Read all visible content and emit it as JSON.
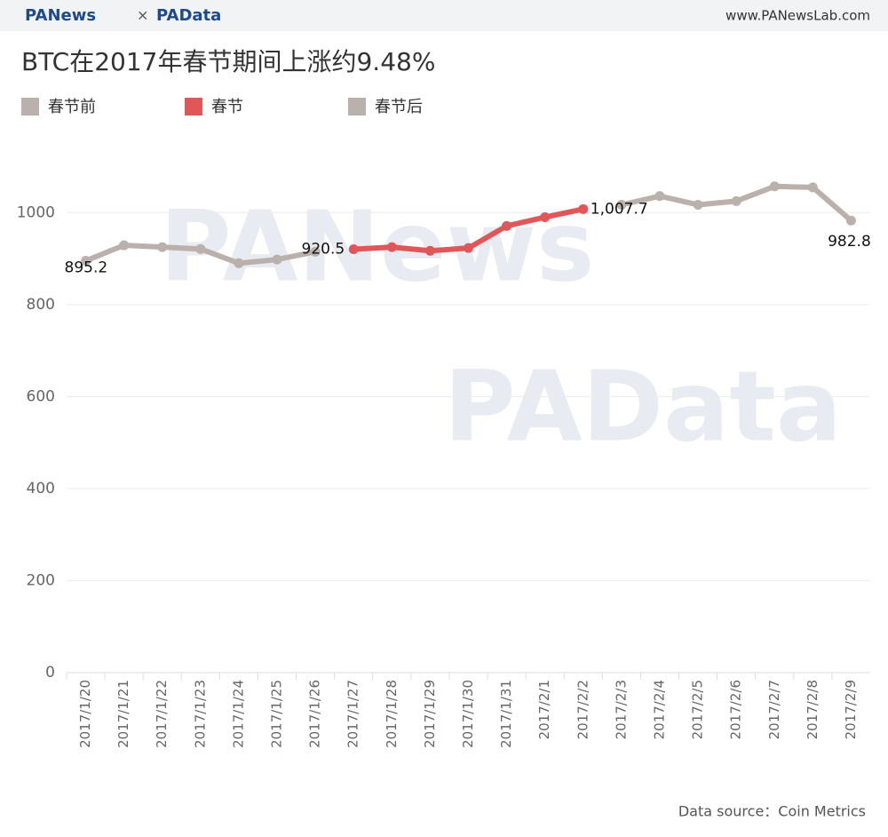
{
  "header": {
    "logo_left": "PANews",
    "separator": "×",
    "logo_right": "PAData",
    "url": "www.PANewsLab.com"
  },
  "watermarks": [
    "PANews",
    "PAData"
  ],
  "chart_data": {
    "type": "line",
    "title": "BTC在2017年春节期间上涨约9.48%",
    "categories": [
      "2017/1/20",
      "2017/1/21",
      "2017/1/22",
      "2017/1/23",
      "2017/1/24",
      "2017/1/25",
      "2017/1/26",
      "2017/1/27",
      "2017/1/28",
      "2017/1/29",
      "2017/1/30",
      "2017/1/31",
      "2017/2/1",
      "2017/2/2",
      "2017/2/3",
      "2017/2/4",
      "2017/2/5",
      "2017/2/6",
      "2017/2/7",
      "2017/2/8",
      "2017/2/9"
    ],
    "series": [
      {
        "name": "春节前",
        "color": "#bab0ac",
        "values": [
          895.2,
          929,
          925,
          921,
          890,
          898,
          915,
          null,
          null,
          null,
          null,
          null,
          null,
          null,
          null,
          null,
          null,
          null,
          null,
          null,
          null
        ],
        "value_labels": [
          "895.2",
          null,
          null,
          null,
          null,
          null,
          null,
          null,
          null,
          null,
          null,
          null,
          null,
          null,
          null,
          null,
          null,
          null,
          null,
          null,
          null
        ]
      },
      {
        "name": "春节",
        "color": "#e15759",
        "values": [
          null,
          null,
          null,
          null,
          null,
          null,
          null,
          920.5,
          925,
          917,
          923,
          971,
          990,
          1007.7,
          null,
          null,
          null,
          null,
          null,
          null,
          null
        ],
        "value_labels": [
          null,
          null,
          null,
          null,
          null,
          null,
          null,
          "920.5",
          null,
          null,
          null,
          null,
          null,
          "1,007.7",
          null,
          null,
          null,
          null,
          null,
          null,
          null
        ]
      },
      {
        "name": "春节后",
        "color": "#bab0ac",
        "values": [
          null,
          null,
          null,
          null,
          null,
          null,
          null,
          null,
          null,
          null,
          null,
          null,
          null,
          null,
          1017,
          1036,
          1017,
          1025,
          1057,
          1055,
          982.8
        ],
        "value_labels": [
          null,
          null,
          null,
          null,
          null,
          null,
          null,
          null,
          null,
          null,
          null,
          null,
          null,
          null,
          null,
          null,
          null,
          null,
          null,
          null,
          "982.8"
        ]
      }
    ],
    "ylim": [
      0,
      1130
    ],
    "yticks": [
      0,
      200,
      400,
      600,
      800,
      1000
    ],
    "grid": true,
    "legend": "top"
  },
  "footer": {
    "source": "Data source：Coin Metrics"
  }
}
